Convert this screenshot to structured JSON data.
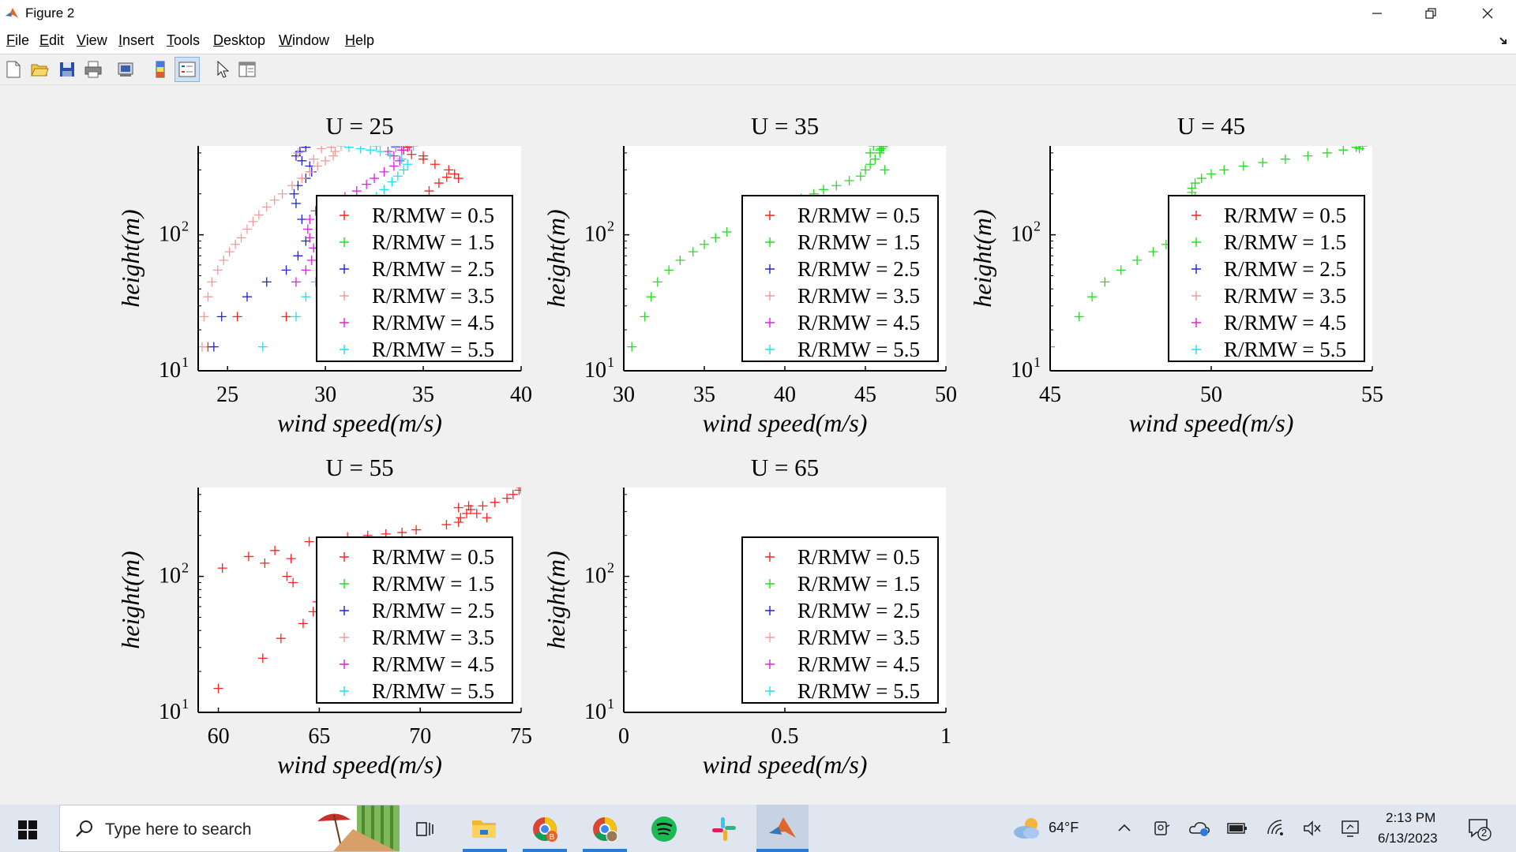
{
  "window": {
    "title": "Figure 2",
    "controls": [
      "minimize",
      "restore",
      "close"
    ]
  },
  "menu": [
    "File",
    "Edit",
    "View",
    "Insert",
    "Tools",
    "Desktop",
    "Window",
    "Help"
  ],
  "toolbar": [
    "new-figure-icon",
    "open-file-icon",
    "save-icon",
    "print-icon",
    "print-preview-icon",
    "colorbar-icon",
    "legend-icon",
    "pointer-icon",
    "property-editor-icon"
  ],
  "legend_entries": [
    {
      "label": "R/RMW = 0.5",
      "color": "#ff2020"
    },
    {
      "label": "R/RMW = 1.5",
      "color": "#22dd22"
    },
    {
      "label": "R/RMW = 2.5",
      "color": "#2020dd"
    },
    {
      "label": "R/RMW = 3.5",
      "color": "#f59a9a"
    },
    {
      "label": "R/RMW = 4.5",
      "color": "#e020e0"
    },
    {
      "label": "R/RMW = 5.5",
      "color": "#20e0f0"
    }
  ],
  "chart_data": [
    {
      "type": "scatter",
      "title": "U = 25",
      "xlabel": "wind speed(m/s)",
      "ylabel": "height(m)",
      "xlim": [
        23.5,
        40
      ],
      "ylim": [
        10,
        450
      ],
      "yscale": "log",
      "xticks": [
        "25",
        "30",
        "35",
        "40"
      ],
      "xtick_values": [
        25,
        30,
        35,
        40
      ],
      "yticks": [
        "10",
        "10",
        "10"
      ],
      "ytick_exponents": [
        "1",
        "2",
        ""
      ],
      "ytick_values": [
        10,
        100,
        1000
      ],
      "legend_position": "lower-right",
      "series": [
        {
          "name": "R/RMW = 0.5",
          "color": "#ff2020",
          "points": [
            [
              24.0,
              15
            ],
            [
              25.5,
              25
            ],
            [
              28.0,
              25
            ],
            [
              30.0,
              35
            ],
            [
              31.0,
              45
            ],
            [
              32.0,
              60
            ],
            [
              33.0,
              80
            ],
            [
              33.5,
              110
            ],
            [
              34.0,
              140
            ],
            [
              34.8,
              180
            ],
            [
              35.3,
              210
            ],
            [
              35.8,
              240
            ],
            [
              36.2,
              265
            ],
            [
              36.6,
              280
            ],
            [
              36.3,
              300
            ],
            [
              35.6,
              330
            ],
            [
              35.0,
              360
            ],
            [
              34.4,
              390
            ],
            [
              34.0,
              420
            ],
            [
              33.6,
              450
            ],
            [
              34.2,
              440
            ],
            [
              35.0,
              380
            ],
            [
              36.8,
              260
            ]
          ]
        },
        {
          "name": "R/RMW = 2.5",
          "color": "#2020dd",
          "points": [
            [
              24.3,
              15
            ],
            [
              24.7,
              25
            ],
            [
              26.0,
              35
            ],
            [
              27.0,
              45
            ],
            [
              28.0,
              55
            ],
            [
              28.6,
              70
            ],
            [
              29.0,
              90
            ],
            [
              28.8,
              130
            ],
            [
              28.5,
              170
            ],
            [
              28.4,
              200
            ],
            [
              28.6,
              230
            ],
            [
              29.0,
              260
            ],
            [
              29.3,
              290
            ],
            [
              29.2,
              320
            ],
            [
              28.8,
              350
            ],
            [
              28.5,
              380
            ],
            [
              28.7,
              410
            ],
            [
              29.0,
              440
            ]
          ]
        },
        {
          "name": "R/RMW = 3.5",
          "color": "#f59a9a",
          "points": [
            [
              23.7,
              15
            ],
            [
              23.8,
              25
            ],
            [
              24.0,
              35
            ],
            [
              24.2,
              45
            ],
            [
              24.5,
              55
            ],
            [
              24.8,
              65
            ],
            [
              25.1,
              75
            ],
            [
              25.4,
              85
            ],
            [
              25.7,
              95
            ],
            [
              26.0,
              110
            ],
            [
              26.3,
              125
            ],
            [
              26.6,
              140
            ],
            [
              27.0,
              160
            ],
            [
              27.4,
              180
            ],
            [
              27.8,
              200
            ],
            [
              28.3,
              230
            ],
            [
              28.8,
              260
            ],
            [
              29.2,
              290
            ],
            [
              29.6,
              320
            ],
            [
              30.0,
              350
            ],
            [
              30.4,
              380
            ],
            [
              30.5,
              410
            ],
            [
              30.3,
              440
            ],
            [
              30.8,
              450
            ],
            [
              29.8,
              430
            ],
            [
              28.6,
              400
            ],
            [
              29.4,
              360
            ]
          ]
        },
        {
          "name": "R/RMW = 4.5",
          "color": "#e020e0",
          "points": [
            [
              28.5,
              45
            ],
            [
              29.0,
              55
            ],
            [
              29.3,
              65
            ],
            [
              29.4,
              80
            ],
            [
              29.2,
              95
            ],
            [
              29.1,
              110
            ],
            [
              29.2,
              130
            ],
            [
              29.5,
              150
            ],
            [
              30.2,
              170
            ],
            [
              31.0,
              190
            ],
            [
              31.6,
              210
            ],
            [
              32.1,
              235
            ],
            [
              32.5,
              260
            ],
            [
              33.0,
              290
            ],
            [
              33.5,
              320
            ],
            [
              33.8,
              350
            ],
            [
              33.5,
              380
            ],
            [
              33.2,
              410
            ],
            [
              33.6,
              440
            ],
            [
              34.3,
              450
            ],
            [
              33.9,
              420
            ]
          ]
        },
        {
          "name": "R/RMW = 5.5",
          "color": "#20e0f0",
          "points": [
            [
              26.8,
              15
            ],
            [
              28.5,
              25
            ],
            [
              29.0,
              35
            ],
            [
              29.5,
              45
            ],
            [
              30.0,
              55
            ],
            [
              30.3,
              70
            ],
            [
              30.6,
              85
            ],
            [
              31.0,
              100
            ],
            [
              31.4,
              120
            ],
            [
              31.8,
              140
            ],
            [
              32.2,
              165
            ],
            [
              32.6,
              190
            ],
            [
              33.0,
              215
            ],
            [
              33.4,
              245
            ],
            [
              33.7,
              270
            ],
            [
              34.0,
              300
            ],
            [
              34.2,
              330
            ],
            [
              33.9,
              360
            ],
            [
              33.3,
              390
            ],
            [
              32.8,
              410
            ],
            [
              32.3,
              420
            ],
            [
              31.8,
              430
            ],
            [
              31.2,
              440
            ],
            [
              32.6,
              450
            ],
            [
              33.6,
              445
            ],
            [
              34.5,
              450
            ]
          ]
        }
      ]
    },
    {
      "type": "scatter",
      "title": "U = 35",
      "xlabel": "wind speed(m/s)",
      "ylabel": "height(m)",
      "xlim": [
        30,
        50
      ],
      "ylim": [
        10,
        450
      ],
      "yscale": "log",
      "xticks": [
        "30",
        "35",
        "40",
        "45",
        "50"
      ],
      "xtick_values": [
        30,
        35,
        40,
        45,
        50
      ],
      "yticks": [
        "10",
        "10",
        "10"
      ],
      "ytick_exponents": [
        "1",
        "2",
        ""
      ],
      "ytick_values": [
        10,
        100,
        1000
      ],
      "legend_position": "lower-right",
      "series": [
        {
          "name": "R/RMW = 1.5",
          "color": "#22dd22",
          "points": [
            [
              30.5,
              15
            ],
            [
              31.3,
              25
            ],
            [
              31.7,
              35
            ],
            [
              32.1,
              45
            ],
            [
              32.8,
              55
            ],
            [
              33.5,
              65
            ],
            [
              34.3,
              75
            ],
            [
              35.0,
              85
            ],
            [
              35.7,
              95
            ],
            [
              36.4,
              105
            ],
            [
              38.7,
              155
            ],
            [
              39.5,
              165
            ],
            [
              40.3,
              175
            ],
            [
              41.0,
              185
            ],
            [
              41.8,
              200
            ],
            [
              42.4,
              215
            ],
            [
              43.2,
              230
            ],
            [
              44.0,
              250
            ],
            [
              44.7,
              270
            ],
            [
              45.0,
              300
            ],
            [
              45.3,
              330
            ],
            [
              45.6,
              360
            ],
            [
              45.9,
              400
            ],
            [
              46.0,
              430
            ],
            [
              45.5,
              450
            ],
            [
              46.2,
              300
            ],
            [
              45.9,
              420
            ],
            [
              46.1,
              445
            ],
            [
              45.3,
              400
            ]
          ]
        }
      ]
    },
    {
      "type": "scatter",
      "title": "U = 45",
      "xlabel": "wind speed(m/s)",
      "ylabel": "height(m)",
      "xlim": [
        45,
        55
      ],
      "ylim": [
        10,
        450
      ],
      "yscale": "log",
      "xticks": [
        "45",
        "50",
        "55"
      ],
      "xtick_values": [
        45,
        50,
        55
      ],
      "yticks": [
        "10",
        "10",
        "10"
      ],
      "ytick_exponents": [
        "1",
        "2",
        ""
      ],
      "ytick_values": [
        10,
        100,
        1000
      ],
      "legend_position": "lower-right",
      "series": [
        {
          "name": "R/RMW = 1.5",
          "color": "#22dd22",
          "points": [
            [
              45.0,
              15
            ],
            [
              45.9,
              25
            ],
            [
              46.3,
              35
            ],
            [
              46.7,
              45
            ],
            [
              47.2,
              55
            ],
            [
              47.7,
              65
            ],
            [
              48.2,
              75
            ],
            [
              48.6,
              85
            ],
            [
              49.8,
              160
            ],
            [
              49.6,
              175
            ],
            [
              49.5,
              190
            ],
            [
              49.4,
              205
            ],
            [
              49.4,
              220
            ],
            [
              49.5,
              240
            ],
            [
              49.7,
              260
            ],
            [
              50.0,
              280
            ],
            [
              50.4,
              300
            ],
            [
              51.0,
              320
            ],
            [
              51.6,
              340
            ],
            [
              52.3,
              360
            ],
            [
              53.0,
              380
            ],
            [
              53.6,
              400
            ],
            [
              54.1,
              420
            ],
            [
              54.5,
              440
            ],
            [
              54.7,
              450
            ],
            [
              54.6,
              430
            ]
          ]
        }
      ]
    },
    {
      "type": "scatter",
      "title": "U = 55",
      "xlabel": "wind speed(m/s)",
      "ylabel": "height(m)",
      "xlim": [
        59,
        75
      ],
      "ylim": [
        10,
        450
      ],
      "yscale": "log",
      "xticks": [
        "60",
        "65",
        "70",
        "75"
      ],
      "xtick_values": [
        60,
        65,
        70,
        75
      ],
      "yticks": [
        "10",
        "10",
        "10"
      ],
      "ytick_exponents": [
        "1",
        "2",
        ""
      ],
      "ytick_values": [
        10,
        100,
        1000
      ],
      "legend_position": "lower-right",
      "series": [
        {
          "name": "R/RMW = 0.5",
          "color": "#ff2020",
          "points": [
            [
              60.0,
              15
            ],
            [
              62.2,
              25
            ],
            [
              63.1,
              35
            ],
            [
              64.2,
              45
            ],
            [
              64.7,
              55
            ],
            [
              64.9,
              65
            ],
            [
              60.2,
              115
            ],
            [
              61.5,
              140
            ],
            [
              62.8,
              155
            ],
            [
              63.6,
              135
            ],
            [
              62.3,
              125
            ],
            [
              63.4,
              100
            ],
            [
              63.7,
              90
            ],
            [
              64.5,
              180
            ],
            [
              66.4,
              195
            ],
            [
              67.4,
              200
            ],
            [
              68.3,
              205
            ],
            [
              69.1,
              210
            ],
            [
              69.8,
              220
            ],
            [
              71.3,
              240
            ],
            [
              71.9,
              250
            ],
            [
              72.0,
              270
            ],
            [
              72.3,
              290
            ],
            [
              72.5,
              310
            ],
            [
              73.1,
              330
            ],
            [
              73.7,
              350
            ],
            [
              74.3,
              375
            ],
            [
              74.6,
              400
            ],
            [
              74.9,
              430
            ],
            [
              75.2,
              410
            ],
            [
              75.0,
              450
            ],
            [
              72.8,
              290
            ],
            [
              73.3,
              270
            ],
            [
              72.4,
              330
            ],
            [
              71.9,
              320
            ]
          ]
        }
      ]
    },
    {
      "type": "scatter",
      "title": "U = 65",
      "xlabel": "wind speed(m/s)",
      "ylabel": "height(m)",
      "xlim": [
        0,
        1
      ],
      "ylim": [
        10,
        450
      ],
      "yscale": "log",
      "xticks": [
        "0",
        "0.5",
        "1"
      ],
      "xtick_values": [
        0,
        0.5,
        1
      ],
      "yticks": [
        "10",
        "10",
        "10"
      ],
      "ytick_exponents": [
        "1",
        "2",
        ""
      ],
      "ytick_values": [
        10,
        100,
        1000
      ],
      "legend_position": "lower-right",
      "series": []
    }
  ],
  "taskbar": {
    "search_placeholder": "Type here to search",
    "weather": "64°F",
    "time": "2:13 PM",
    "date": "6/13/2023",
    "notification_count": "2"
  }
}
